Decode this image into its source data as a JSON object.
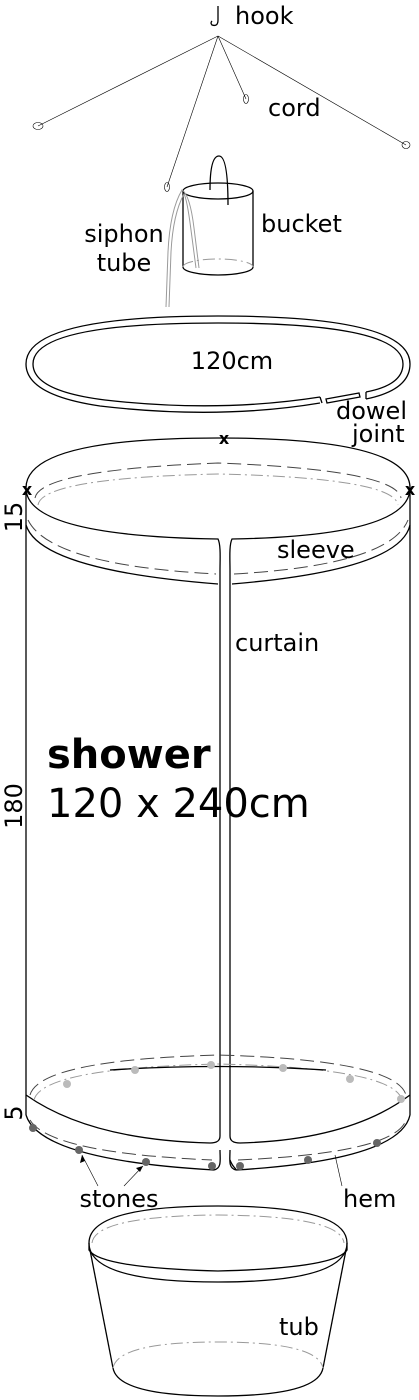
{
  "labels": {
    "hook": "hook",
    "cord": "cord",
    "siphon_line1": "siphon",
    "siphon_line2": "tube",
    "bucket": "bucket",
    "ring_size": "120cm",
    "dowel_line1": "dowel",
    "dowel_line2": "joint",
    "sleeve": "sleeve",
    "curtain": "curtain",
    "title": "shower",
    "dimensions": "120 x 240cm",
    "dim_top": "15",
    "dim_middle": "180",
    "dim_bottom": "5",
    "stones": "stones",
    "hem": "hem",
    "tub": "tub",
    "mark": "x"
  },
  "colors": {
    "line": "#000000",
    "stone_front": "#666666",
    "stone_back": "#bbbbbb"
  }
}
